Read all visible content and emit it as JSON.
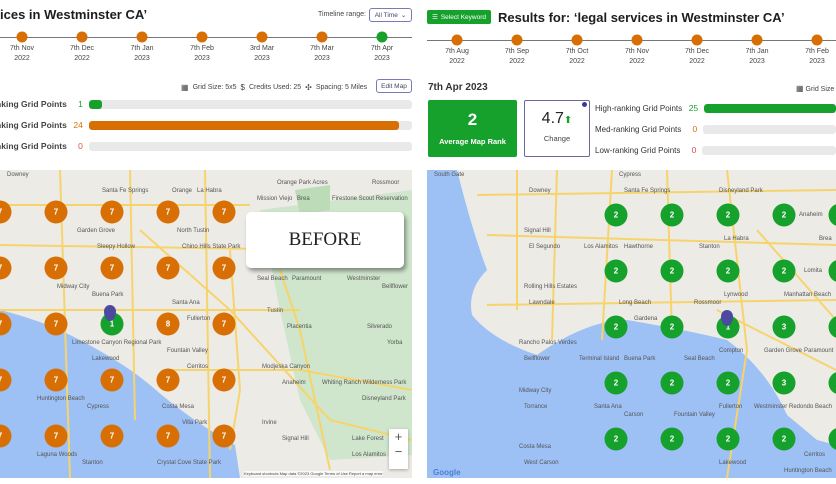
{
  "colors": {
    "green": "#16a02c",
    "orange": "#d86f05",
    "red": "#e05050",
    "ocean": "#9dc0f5"
  },
  "left": {
    "title": "ices in Westminster CA’",
    "timeline_range_label": "Timeline range:",
    "timeline_range_value": "All Time",
    "timeline": [
      {
        "d": "7th Nov",
        "y": "2022",
        "status": "orange"
      },
      {
        "d": "7th Dec",
        "y": "2022",
        "status": "orange"
      },
      {
        "d": "7th Jan",
        "y": "2023",
        "status": "orange"
      },
      {
        "d": "7th Feb",
        "y": "2023",
        "status": "orange"
      },
      {
        "d": "3rd Mar",
        "y": "2023",
        "status": "orange"
      },
      {
        "d": "7th Mar",
        "y": "2023",
        "status": "orange"
      },
      {
        "d": "7th Apr",
        "y": "2023",
        "status": "green"
      }
    ],
    "grid_size": "Grid Size: 5x5",
    "credits": "Credits Used: 25",
    "spacing": "Spacing: 5 Miles",
    "edit_map": "Edit Map",
    "bars": [
      {
        "label": "ranking Grid Points",
        "value": "1",
        "fraction": 0.04,
        "color": "#16a02c"
      },
      {
        "label": "ranking Grid Points",
        "value": "24",
        "fraction": 0.96,
        "color": "#d86f05"
      },
      {
        "label": "ranking Grid Points",
        "value": "0",
        "fraction": 0,
        "color": "#e05050"
      }
    ],
    "overlay": "BEFORE",
    "grid": [
      [
        "7",
        "7",
        "7",
        "7",
        "7"
      ],
      [
        "7",
        "7",
        "7",
        "7",
        "7"
      ],
      [
        "7",
        "7",
        "1",
        "8",
        "7"
      ],
      [
        "7",
        "7",
        "7",
        "7",
        "7"
      ],
      [
        "7",
        "7",
        "7",
        "7",
        "7"
      ]
    ],
    "places": [
      "Downey",
      "Santa Fe Springs",
      "La Habra",
      "Brea",
      "Firestone Scout Reservation",
      "Sleepy Hollow",
      "Chino Hills State Park",
      "Paramount",
      "Bellflower",
      "Buena Park",
      "Fullerton",
      "Placentia",
      "Yorba",
      "Lakewood",
      "Cerritos",
      "Anaheim",
      "Disneyland Park",
      "Cypress",
      "Villa Park",
      "Signal Hill",
      "Los Alamitos",
      "Stanton",
      "Orange",
      "Orange Park Acres",
      "Rossmoor",
      "Garden Grove",
      "North Tustin",
      "Seal Beach",
      "Westminster",
      "Midway City",
      "Santa Ana",
      "Tustin",
      "Silverado",
      "Limestone Canyon Regional Park",
      "Fountain Valley",
      "Modjeska Canyon",
      "Whiting Ranch Wilderness Park",
      "Huntington Beach",
      "Costa Mesa",
      "Irvine",
      "Lake Forest",
      "Laguna Woods",
      "Crystal Cove State Park",
      "Mission Viejo"
    ],
    "attribution": "Keyboard shortcuts   Map data ©2023 Google   Terms of Use   Report a map error"
  },
  "right": {
    "select_keyword": "Select Keyword",
    "title": "Results for: ‘legal services in Westminster CA’",
    "timeline": [
      {
        "d": "7th Aug",
        "y": "2022"
      },
      {
        "d": "7th Sep",
        "y": "2022"
      },
      {
        "d": "7th Oct",
        "y": "2022"
      },
      {
        "d": "7th Nov",
        "y": "2022"
      },
      {
        "d": "7th Dec",
        "y": "2022"
      },
      {
        "d": "7th Jan",
        "y": "2023"
      },
      {
        "d": "7th Feb",
        "y": "2023"
      }
    ],
    "date": "7th Apr 2023",
    "grid_size": "Grid Size",
    "avg_rank": "2",
    "avg_rank_label": "Average Map Rank",
    "change": "4.7",
    "change_label": "Change",
    "bars": [
      {
        "label": "High-ranking Grid Points",
        "value": "25",
        "fraction": 1,
        "color": "#16a02c"
      },
      {
        "label": "Med-ranking Grid Points",
        "value": "0",
        "fraction": 0,
        "color": "#d86f05"
      },
      {
        "label": "Low-ranking Grid Points",
        "value": "0",
        "fraction": 0,
        "color": "#e05050"
      }
    ],
    "grid": [
      [
        "2",
        "2",
        "2",
        "2",
        "2"
      ],
      [
        "2",
        "2",
        "2",
        "2",
        "2"
      ],
      [
        "2",
        "2",
        "1",
        "3",
        "2"
      ],
      [
        "2",
        "2",
        "2",
        "3",
        "2"
      ],
      [
        "2",
        "2",
        "2",
        "2",
        "2"
      ]
    ],
    "places": [
      "South Gate",
      "Downey",
      "Santa Fe Springs",
      "La Habra",
      "Brea",
      "El Segundo",
      "Hawthorne",
      "Lynwood",
      "Manhattan Beach",
      "Lawndale",
      "Gardena",
      "Compton",
      "Paramount",
      "Bellflower",
      "Buena Park",
      "Fullerton",
      "Redondo Beach",
      "Torrance",
      "Carson",
      "Lakewood",
      "Cerritos",
      "West Carson",
      "Cypress",
      "Disneyland Park",
      "Anaheim",
      "Signal Hill",
      "Los Alamitos",
      "Stanton",
      "Lomita",
      "Rolling Hills Estates",
      "Long Beach",
      "Rossmoor",
      "Garden Grove",
      "Rancho Palos Verdes",
      "Terminal Island",
      "Seal Beach",
      "Westminster",
      "Midway City",
      "Santa Ana",
      "Fountain Valley",
      "Huntington Beach",
      "Costa Mesa"
    ],
    "google": "Google"
  }
}
